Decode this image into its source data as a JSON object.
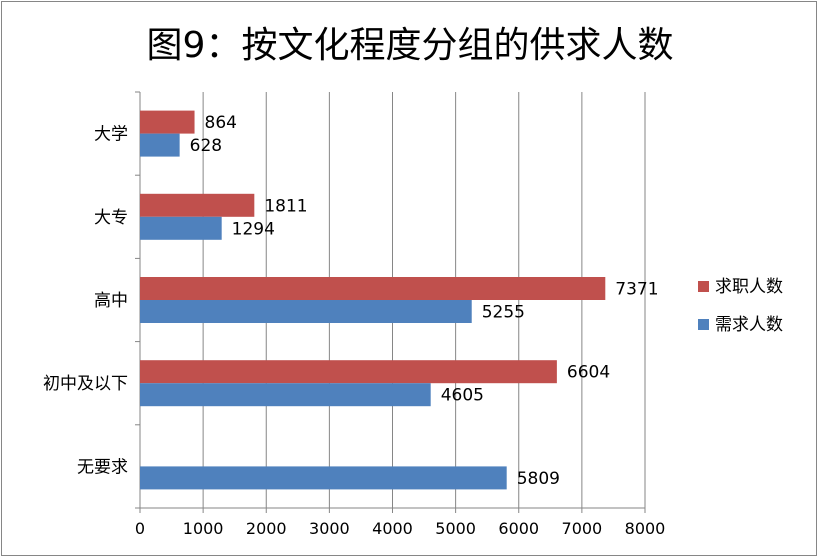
{
  "chart_data": {
    "type": "bar",
    "orientation": "horizontal",
    "title": "图9：按文化程度分组的供求人数",
    "categories": [
      "大学",
      "大专",
      "高中",
      "初中及以下",
      "无要求"
    ],
    "series": [
      {
        "name": "求职人数",
        "color": "#c0504d",
        "values": [
          864,
          1811,
          7371,
          6604,
          null
        ]
      },
      {
        "name": "需求人数",
        "color": "#4f81bd",
        "values": [
          628,
          1294,
          5255,
          4605,
          5809
        ]
      }
    ],
    "xlim": [
      0,
      8000
    ],
    "xticks": [
      0,
      1000,
      2000,
      3000,
      4000,
      5000,
      6000,
      7000,
      8000
    ],
    "grid": true,
    "legend": "right"
  }
}
